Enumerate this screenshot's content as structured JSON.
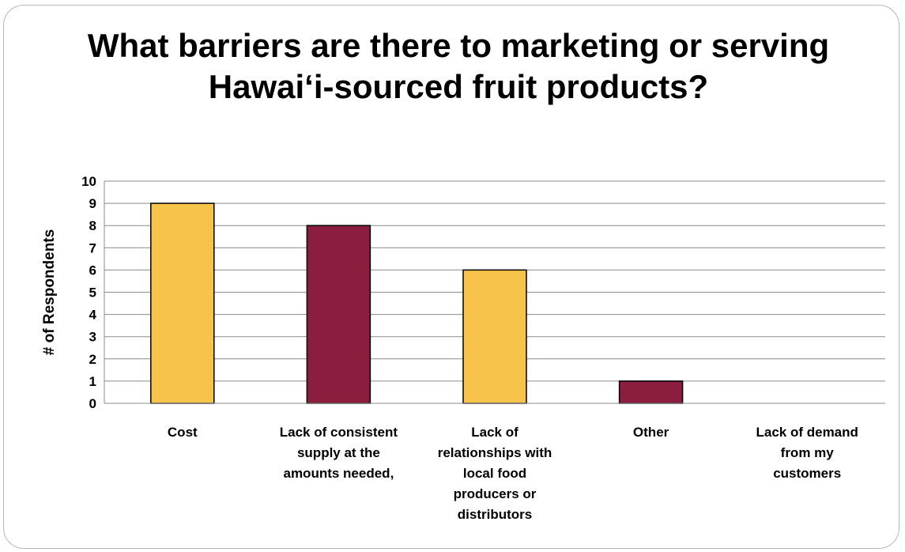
{
  "chart_data": {
    "type": "bar",
    "title": "What barriers are there to marketing or serving Hawai‘i-sourced fruit products?",
    "categories": [
      "Cost",
      "Lack of consistent supply at the amounts needed,",
      "Lack of relationships with local food producers or distributors",
      "Other",
      "Lack of demand from my customers"
    ],
    "category_lines": [
      [
        "Cost"
      ],
      [
        "Lack of consistent",
        "supply at the",
        "amounts needed,"
      ],
      [
        "Lack of",
        "relationships with",
        "local food",
        "producers or",
        "distributors"
      ],
      [
        "Other"
      ],
      [
        "Lack of demand",
        "from my",
        "customers"
      ]
    ],
    "values": [
      9,
      8,
      6,
      1,
      0
    ],
    "bar_colors": [
      "#F7C34B",
      "#8B1E3F",
      "#F7C34B",
      "#8B1E3F",
      "#F7C34B"
    ],
    "xlabel": "",
    "ylabel": "# of Respondents",
    "ylim": [
      0,
      10
    ],
    "yticks": [
      0,
      1,
      2,
      3,
      4,
      5,
      6,
      7,
      8,
      9,
      10
    ],
    "grid": true,
    "legend": "none"
  }
}
